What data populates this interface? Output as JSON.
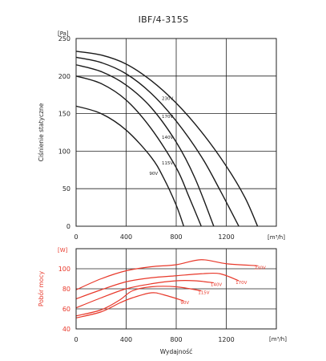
{
  "chart_data": [
    {
      "type": "line",
      "title": "IBF/4-315S",
      "xlabel": "",
      "ylabel": "Ciśnienie statyczne",
      "y_unit": "[Pa]",
      "x_unit": "[m³/h]",
      "xlim": [
        0,
        1600
      ],
      "ylim": [
        0,
        250
      ],
      "x_ticks": [
        "0",
        "400",
        "800",
        "1200"
      ],
      "y_ticks": [
        "0",
        "50",
        "100",
        "150",
        "200",
        "250"
      ],
      "grid": true,
      "series": [
        {
          "name": "230V",
          "color": "#1a1a1a",
          "x": [
            0,
            200,
            400,
            600,
            800,
            1000,
            1200,
            1350,
            1450
          ],
          "y": [
            233,
            228,
            216,
            194,
            164,
            126,
            80,
            38,
            0
          ]
        },
        {
          "name": "170V",
          "color": "#1a1a1a",
          "x": [
            0,
            200,
            400,
            600,
            800,
            1000,
            1150,
            1300
          ],
          "y": [
            225,
            218,
            203,
            177,
            140,
            93,
            48,
            0
          ]
        },
        {
          "name": "140V",
          "color": "#1a1a1a",
          "x": [
            0,
            200,
            400,
            600,
            800,
            950,
            1100
          ],
          "y": [
            215,
            206,
            188,
            158,
            112,
            64,
            0
          ]
        },
        {
          "name": "115V",
          "color": "#1a1a1a",
          "x": [
            0,
            200,
            400,
            600,
            800,
            900,
            1000
          ],
          "y": [
            200,
            190,
            168,
            130,
            78,
            40,
            0
          ]
        },
        {
          "name": "90V",
          "color": "#1a1a1a",
          "x": [
            0,
            200,
            400,
            600,
            700,
            800,
            860
          ],
          "y": [
            160,
            150,
            128,
            92,
            64,
            28,
            0
          ]
        }
      ]
    },
    {
      "type": "line",
      "title": "",
      "xlabel": "Wydajność",
      "ylabel": "Pobór mocy",
      "y_unit": "[W]",
      "x_unit": "[m³/h]",
      "xlim": [
        0,
        1600
      ],
      "ylim": [
        40,
        120
      ],
      "x_ticks": [
        "0",
        "400",
        "800",
        "1200"
      ],
      "y_ticks": [
        "40",
        "60",
        "80",
        "100"
      ],
      "grid": true,
      "series": [
        {
          "name": "230V",
          "color": "#e8382a",
          "x": [
            0,
            200,
            400,
            600,
            800,
            1000,
            1200,
            1450
          ],
          "y": [
            79,
            90,
            98,
            102,
            104,
            109,
            105,
            103
          ]
        },
        {
          "name": "170V",
          "color": "#e8382a",
          "x": [
            0,
            200,
            400,
            600,
            800,
            1000,
            1150,
            1300
          ],
          "y": [
            70,
            79,
            87,
            91,
            93,
            95,
            95,
            88
          ]
        },
        {
          "name": "140V",
          "color": "#e8382a",
          "x": [
            0,
            200,
            400,
            600,
            800,
            950,
            1100
          ],
          "y": [
            61,
            71,
            80,
            85,
            88,
            88,
            86
          ]
        },
        {
          "name": "115V",
          "color": "#e8382a",
          "x": [
            0,
            200,
            350,
            450,
            600,
            800,
            1000
          ],
          "y": [
            53,
            59,
            69,
            78,
            82,
            82,
            78
          ]
        },
        {
          "name": "90V",
          "color": "#e8382a",
          "x": [
            0,
            200,
            350,
            450,
            600,
            700,
            860
          ],
          "y": [
            51,
            57,
            66,
            71,
            76,
            74,
            68
          ]
        }
      ]
    }
  ]
}
